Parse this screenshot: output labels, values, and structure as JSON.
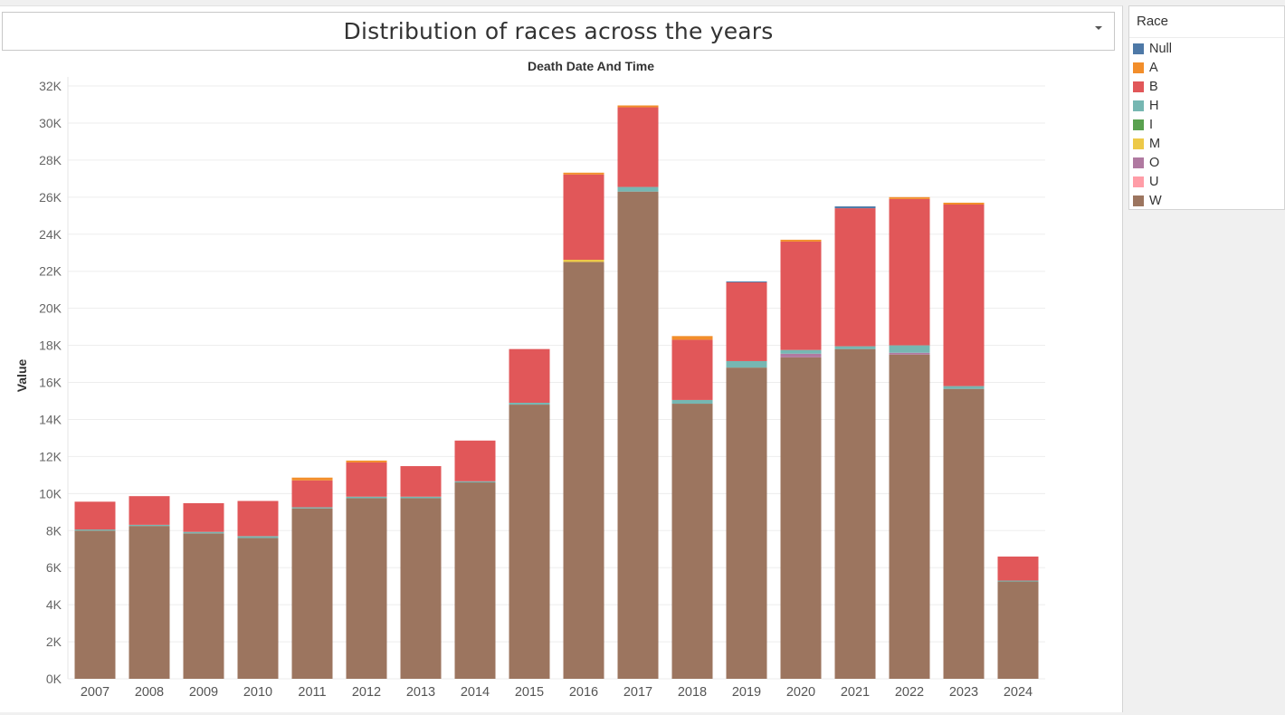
{
  "title": "Distribution of races across the years",
  "legend": {
    "title": "Race",
    "items": [
      {
        "label": "Null",
        "color": "#4e79a7"
      },
      {
        "label": "A",
        "color": "#f28e2b"
      },
      {
        "label": "B",
        "color": "#e15759"
      },
      {
        "label": "H",
        "color": "#76b7b2"
      },
      {
        "label": "I",
        "color": "#59a14f"
      },
      {
        "label": "M",
        "color": "#edc948"
      },
      {
        "label": "O",
        "color": "#b07aa1"
      },
      {
        "label": "U",
        "color": "#ff9da7"
      },
      {
        "label": "W",
        "color": "#9c755f"
      }
    ]
  },
  "chart_data": {
    "type": "bar",
    "stacked": true,
    "title": "Death Date And Time",
    "xlabel": "",
    "ylabel": "Value",
    "ylim": [
      0,
      32000
    ],
    "yticks": [
      "0K",
      "2K",
      "4K",
      "6K",
      "8K",
      "10K",
      "12K",
      "14K",
      "16K",
      "18K",
      "20K",
      "22K",
      "24K",
      "26K",
      "28K",
      "30K",
      "32K"
    ],
    "grid": true,
    "legend_position": "right",
    "categories": [
      "2007",
      "2008",
      "2009",
      "2010",
      "2011",
      "2012",
      "2013",
      "2014",
      "2015",
      "2016",
      "2017",
      "2018",
      "2019",
      "2020",
      "2021",
      "2022",
      "2023",
      "2024"
    ],
    "series": [
      {
        "name": "W",
        "color": "#9c755f",
        "values": [
          8000,
          8250,
          7850,
          7600,
          9200,
          9750,
          9750,
          10600,
          14800,
          22500,
          26300,
          14850,
          16800,
          17350,
          17800,
          17500,
          15650,
          5250
        ]
      },
      {
        "name": "U",
        "color": "#ff9da7",
        "values": [
          0,
          0,
          0,
          0,
          0,
          0,
          0,
          0,
          0,
          0,
          0,
          0,
          0,
          0,
          0,
          0,
          0,
          0
        ]
      },
      {
        "name": "O",
        "color": "#b07aa1",
        "values": [
          0,
          0,
          0,
          0,
          0,
          0,
          0,
          0,
          0,
          0,
          0,
          0,
          0,
          200,
          0,
          100,
          0,
          0
        ]
      },
      {
        "name": "M",
        "color": "#edc948",
        "values": [
          0,
          0,
          0,
          0,
          0,
          0,
          0,
          0,
          0,
          120,
          0,
          0,
          0,
          0,
          0,
          0,
          0,
          0
        ]
      },
      {
        "name": "I",
        "color": "#59a14f",
        "values": [
          0,
          0,
          0,
          0,
          0,
          0,
          0,
          0,
          0,
          0,
          0,
          0,
          0,
          0,
          0,
          0,
          0,
          0
        ]
      },
      {
        "name": "H",
        "color": "#76b7b2",
        "values": [
          60,
          60,
          80,
          100,
          60,
          80,
          80,
          60,
          100,
          0,
          250,
          200,
          350,
          200,
          150,
          400,
          150,
          50
        ]
      },
      {
        "name": "B",
        "color": "#e15759",
        "values": [
          1500,
          1550,
          1550,
          1900,
          1450,
          1850,
          1650,
          2200,
          2900,
          4600,
          4300,
          3250,
          4250,
          5850,
          7450,
          7900,
          9800,
          1300
        ]
      },
      {
        "name": "A",
        "color": "#f28e2b",
        "values": [
          0,
          0,
          0,
          0,
          150,
          100,
          0,
          0,
          0,
          100,
          100,
          200,
          0,
          100,
          0,
          100,
          100,
          0
        ]
      },
      {
        "name": "Null",
        "color": "#4e79a7",
        "values": [
          0,
          0,
          0,
          0,
          0,
          0,
          0,
          0,
          0,
          0,
          0,
          0,
          50,
          0,
          100,
          0,
          0,
          0
        ]
      }
    ]
  }
}
